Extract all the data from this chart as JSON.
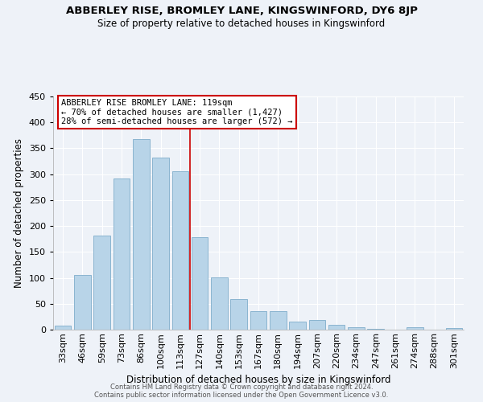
{
  "title": "ABBERLEY RISE, BROMLEY LANE, KINGSWINFORD, DY6 8JP",
  "subtitle": "Size of property relative to detached houses in Kingswinford",
  "xlabel": "Distribution of detached houses by size in Kingswinford",
  "ylabel": "Number of detached properties",
  "categories": [
    "33sqm",
    "46sqm",
    "59sqm",
    "73sqm",
    "86sqm",
    "100sqm",
    "113sqm",
    "127sqm",
    "140sqm",
    "153sqm",
    "167sqm",
    "180sqm",
    "194sqm",
    "207sqm",
    "220sqm",
    "234sqm",
    "247sqm",
    "261sqm",
    "274sqm",
    "288sqm",
    "301sqm"
  ],
  "values": [
    8,
    105,
    181,
    291,
    367,
    332,
    305,
    178,
    101,
    59,
    36,
    36,
    15,
    19,
    10,
    5,
    2,
    0,
    5,
    0,
    3
  ],
  "bar_color": "#b8d4e8",
  "bar_edge_color": "#8ab4d0",
  "line_x_index": 6,
  "line_color": "#cc0000",
  "annotation_title": "ABBERLEY RISE BROMLEY LANE: 119sqm",
  "annotation_line1": "← 70% of detached houses are smaller (1,427)",
  "annotation_line2": "28% of semi-detached houses are larger (572) →",
  "annotation_box_facecolor": "#ffffff",
  "annotation_box_edgecolor": "#cc0000",
  "ylim": [
    0,
    450
  ],
  "yticks": [
    0,
    50,
    100,
    150,
    200,
    250,
    300,
    350,
    400,
    450
  ],
  "footer1": "Contains HM Land Registry data © Crown copyright and database right 2024.",
  "footer2": "Contains public sector information licensed under the Open Government Licence v3.0.",
  "bg_color": "#eef2f8",
  "plot_bg_color": "#eef2f8",
  "grid_color": "#ffffff",
  "title_fontsize": 9.5,
  "subtitle_fontsize": 8.5,
  "ylabel_fontsize": 8.5,
  "xlabel_fontsize": 8.5,
  "tick_fontsize": 8.0,
  "ann_fontsize": 7.5,
  "footer_fontsize": 6.0
}
